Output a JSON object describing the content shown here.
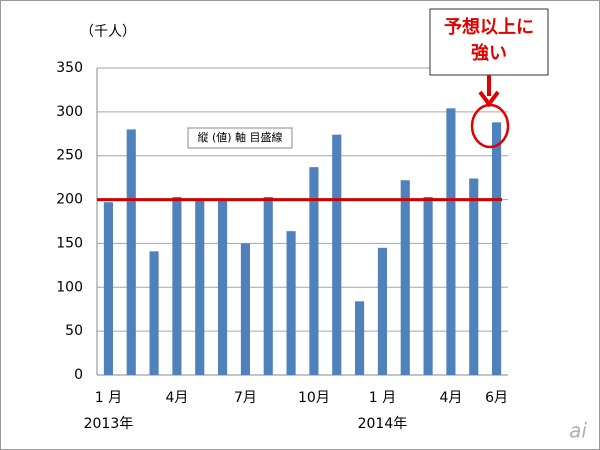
{
  "chart_data": {
    "type": "bar",
    "unit_label": "（千人）",
    "categories": [
      "1 月",
      null,
      null,
      "4月",
      null,
      null,
      "7月",
      null,
      null,
      "10月",
      null,
      null,
      "1 月",
      null,
      null,
      "4月",
      null,
      "6月"
    ],
    "year_labels": [
      {
        "index": 0,
        "label": "2013年"
      },
      {
        "index": 12,
        "label": "2014年"
      }
    ],
    "values": [
      197,
      280,
      141,
      203,
      200,
      200,
      150,
      203,
      164,
      237,
      274,
      84,
      145,
      222,
      203,
      304,
      224,
      288
    ],
    "color": "#4f81bd",
    "ylim": [
      0,
      350
    ],
    "yticks": [
      0,
      50,
      100,
      150,
      200,
      250,
      300,
      350
    ],
    "grid": true,
    "reference_line": 200,
    "reference_color": "#d00000",
    "tooltip": "縦 (値) 軸 目盛線",
    "annotation": [
      "予想以上に",
      "強い"
    ],
    "watermark": "ai"
  }
}
